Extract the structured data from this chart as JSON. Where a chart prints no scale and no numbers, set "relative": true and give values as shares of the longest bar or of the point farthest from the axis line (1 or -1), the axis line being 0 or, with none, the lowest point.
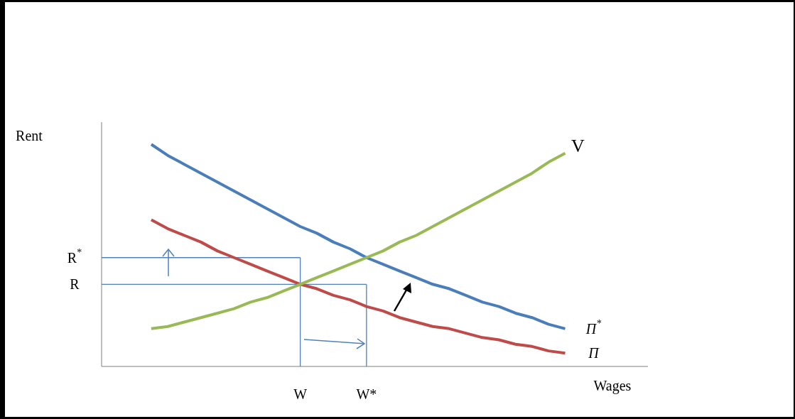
{
  "chart_data": {
    "type": "line",
    "relative": true,
    "xlabel": "Wages",
    "ylabel": "Rent",
    "categories": [
      null,
      null,
      null,
      null,
      null,
      null,
      null,
      null,
      null,
      null,
      null,
      null,
      "W",
      null,
      null,
      null,
      "W*",
      null,
      null,
      null,
      null,
      null,
      null,
      null,
      null,
      null,
      null,
      null,
      null,
      null,
      null,
      null,
      null,
      null
    ],
    "series": [
      {
        "name": "Π$^{*}$",
        "color": "#4a7ebb",
        "values": [
          null,
          null,
          null,
          1.0,
          0.95,
          0.91,
          0.87,
          0.83,
          0.79,
          0.75,
          0.71,
          0.67,
          0.63,
          0.6,
          0.56,
          0.53,
          0.49,
          0.46,
          0.43,
          0.4,
          0.37,
          0.35,
          0.32,
          0.29,
          0.27,
          0.24,
          0.22,
          0.19,
          0.17,
          null,
          null,
          null,
          null,
          null
        ]
      },
      {
        "name": "Π",
        "color": "#be4b48",
        "values": [
          null,
          null,
          null,
          0.66,
          0.62,
          0.59,
          0.56,
          0.52,
          0.49,
          0.46,
          0.43,
          0.4,
          0.37,
          0.35,
          0.32,
          0.3,
          0.27,
          0.25,
          0.22,
          0.2,
          0.18,
          0.17,
          0.15,
          0.13,
          0.12,
          0.1,
          0.09,
          0.07,
          0.06,
          null,
          null,
          null,
          null,
          null
        ]
      },
      {
        "name": "V",
        "color": "#98b954",
        "values": [
          null,
          null,
          null,
          0.17,
          0.18,
          0.2,
          0.22,
          0.24,
          0.26,
          0.29,
          0.31,
          0.34,
          0.37,
          0.4,
          0.43,
          0.46,
          0.49,
          0.52,
          0.56,
          0.59,
          0.63,
          0.67,
          0.71,
          0.75,
          0.79,
          0.83,
          0.87,
          0.92,
          0.96,
          null,
          null,
          null,
          null,
          null
        ]
      }
    ],
    "ref_lines": [
      {
        "axis": "y",
        "value": 0.49,
        "label": "R$^{*}$",
        "color": "#4f81bd"
      },
      {
        "axis": "y",
        "value": 0.37,
        "label": "R",
        "color": "#4f81bd"
      },
      {
        "axis": "x",
        "value": "W*",
        "color": "#4f81bd"
      },
      {
        "axis": "x",
        "value": "W",
        "color": "#4f81bd"
      }
    ],
    "legend": false,
    "grid": false,
    "marker": "none",
    "line_style": "solid"
  }
}
